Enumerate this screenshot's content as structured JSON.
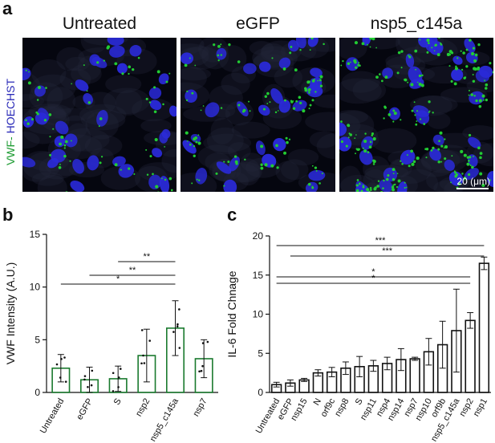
{
  "panel_labels": {
    "a": "a",
    "b": "b",
    "c": "c"
  },
  "microscopy": {
    "titles": [
      "Untreated",
      "eGFP",
      "nsp5_c145a"
    ],
    "stain_label_vwf": "VWF-",
    "stain_label_hoechst": "HOECHST",
    "scale_label": "20 (μm)",
    "colors": {
      "nuclei": "#2a2ad8",
      "vwf": "#22cc33",
      "background": "#05060f"
    }
  },
  "chart_data": [
    {
      "type": "bar",
      "panel": "b",
      "ylabel": "VWF Intensity (A.U.)",
      "categories": [
        "Untreated",
        "eGFP",
        "S",
        "nsp2",
        "nsp5_c145a",
        "nsp7"
      ],
      "values": [
        2.3,
        1.2,
        1.3,
        3.5,
        6.1,
        3.2
      ],
      "errors": [
        1.3,
        1.2,
        1.2,
        2.5,
        2.6,
        1.8
      ],
      "ylim": [
        0,
        15
      ],
      "yticks": [
        "0",
        "5",
        "10",
        "15"
      ],
      "bar_color": "#1a7a2e",
      "significance": [
        {
          "from": "S",
          "to": "nsp5_c145a",
          "label": "**"
        },
        {
          "from": "eGFP",
          "to": "nsp5_c145a",
          "label": "**"
        },
        {
          "from": "Untreated",
          "to": "nsp5_c145a",
          "label": "*"
        }
      ]
    },
    {
      "type": "bar",
      "panel": "c",
      "ylabel": "IL-6 Fold Chnage",
      "categories": [
        "Untreated",
        "eGFP",
        "nsp15",
        "N",
        "orf9c",
        "nsp8",
        "S",
        "nsp11",
        "nsp4",
        "nsp14",
        "nsp7",
        "nsp10",
        "orf9b",
        "nsp5_c145a",
        "nsp2",
        "nsp1"
      ],
      "values": [
        1.0,
        1.2,
        1.6,
        2.5,
        2.6,
        3.1,
        3.3,
        3.4,
        3.7,
        4.2,
        4.3,
        5.2,
        6.1,
        7.9,
        9.2,
        16.5
      ],
      "errors": [
        0.3,
        0.4,
        0.2,
        0.4,
        0.6,
        0.8,
        1.3,
        0.7,
        0.8,
        1.4,
        0.2,
        1.7,
        3.0,
        5.3,
        1.0,
        0.8
      ],
      "ylim": [
        0,
        20
      ],
      "yticks": [
        "0",
        "5",
        "10",
        "15",
        "20"
      ],
      "bar_color": "#111111",
      "significance": [
        {
          "from": "Untreated",
          "to": "nsp1",
          "label": "***"
        },
        {
          "from": "eGFP",
          "to": "nsp1",
          "label": "***"
        },
        {
          "from": "Untreated",
          "to": "nsp2",
          "label": "*"
        },
        {
          "from": "Untreated",
          "to": "nsp2",
          "label": "*"
        }
      ]
    }
  ]
}
